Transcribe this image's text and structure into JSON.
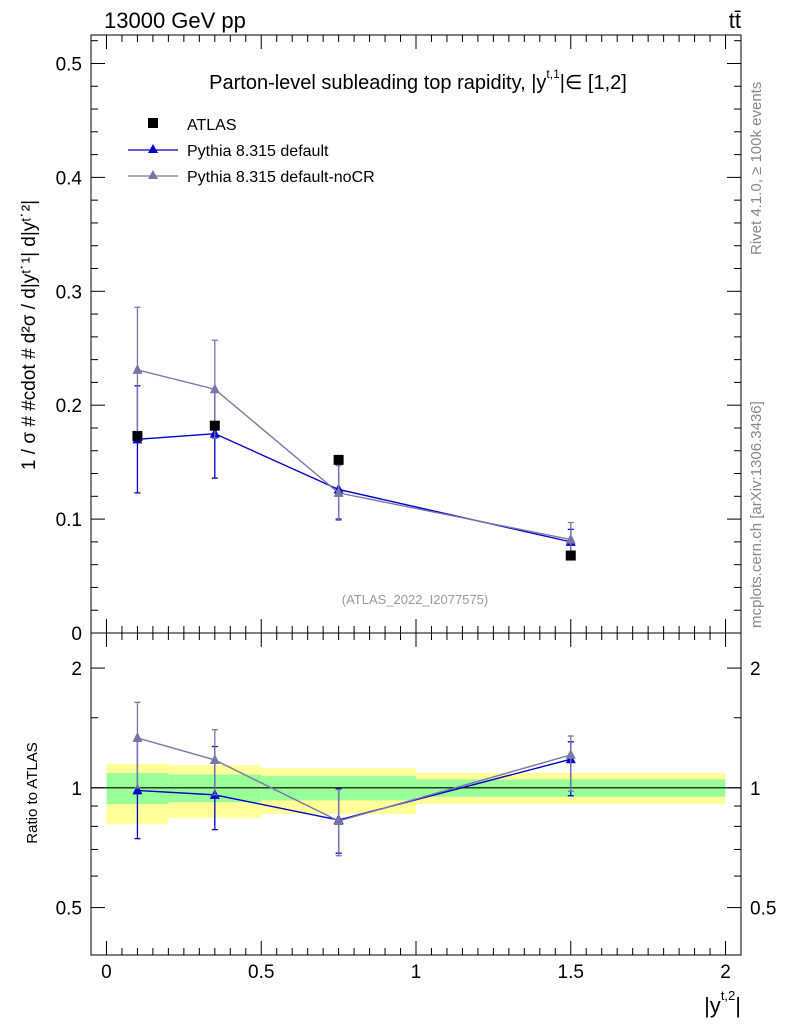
{
  "header": {
    "left": "13000 GeV pp",
    "right": "tt̄"
  },
  "side_labels": {
    "upper": "Rivet 4.1.0, ≥ 100k events",
    "lower": "mcplots.cern.ch [arXiv:1306.3436]"
  },
  "chart_data": [
    {
      "type": "scatter",
      "title": "Parton-level subleading top rapidity, |y",
      "title_sup": "t,1",
      "title_tail": "|∈ [1,2]",
      "ylabel": "1 / σ # #cdot # d²σ / d|yᵗ˙¹| d|yᵗ˙²|",
      "xlim": [
        -0.05,
        2.05
      ],
      "ylim": [
        0,
        0.525
      ],
      "yticks": [
        0.1,
        0.2,
        0.3,
        0.4,
        0.5
      ],
      "ytick_labels": [
        "0.1",
        "0.2",
        "0.3",
        "0.4",
        "0.5"
      ],
      "ytick_zero_label": "0",
      "watermark": "(ATLAS_2022_I2077575)",
      "legend": [
        "ATLAS",
        "Pythia 8.315 default",
        "Pythia 8.315 default-noCR"
      ],
      "data": {
        "name": "ATLAS",
        "color": "#000000",
        "x": [
          0.1,
          0.35,
          0.75,
          1.5
        ],
        "y": [
          0.173,
          0.182,
          0.152,
          0.068
        ]
      },
      "series": [
        {
          "name": "Pythia 8.315 default",
          "color": "#0000cc",
          "x": [
            0.1,
            0.35,
            0.75,
            1.5
          ],
          "y": [
            0.17,
            0.175,
            0.126,
            0.08
          ],
          "err": [
            0.047,
            0.039,
            0.026,
            0.011
          ]
        },
        {
          "name": "Pythia 8.315 default-noCR",
          "color": "#7777aa",
          "x": [
            0.1,
            0.35,
            0.75,
            1.5
          ],
          "y": [
            0.231,
            0.214,
            0.123,
            0.082
          ],
          "err": [
            0.055,
            0.043,
            0.024,
            0.015
          ]
        }
      ]
    },
    {
      "type": "line",
      "ylabel": "Ratio to ATLAS",
      "xlabel": "|y",
      "xlabel_sup": "t,2",
      "xlabel_tail": "|",
      "ylim": [
        0.38,
        2.45
      ],
      "xticks": [
        0,
        0.5,
        1,
        1.5,
        2
      ],
      "xtick_labels": [
        "0",
        "0.5",
        "1",
        "1.5",
        "2"
      ],
      "yticks": [
        0.5,
        1,
        2
      ],
      "ytick_labels": [
        "0.5",
        "1",
        "2"
      ],
      "bands": [
        {
          "x0": 0.0,
          "x1": 0.2,
          "inner": [
            0.91,
            1.09
          ],
          "outer": [
            0.81,
            1.15
          ]
        },
        {
          "x0": 0.2,
          "x1": 0.5,
          "inner": [
            0.92,
            1.08
          ],
          "outer": [
            0.84,
            1.14
          ]
        },
        {
          "x0": 0.5,
          "x1": 1.0,
          "inner": [
            0.93,
            1.07
          ],
          "outer": [
            0.86,
            1.12
          ]
        },
        {
          "x0": 1.0,
          "x1": 2.0,
          "inner": [
            0.95,
            1.05
          ],
          "outer": [
            0.91,
            1.09
          ]
        }
      ],
      "series": [
        {
          "name": "Pythia 8.315 default",
          "color": "#0000cc",
          "x": [
            0.1,
            0.35,
            0.75,
            1.5
          ],
          "y": [
            0.985,
            0.96,
            0.83,
            1.18
          ],
          "err_low": [
            0.745,
            0.785,
            0.685,
            0.955
          ],
          "err_high": [
            1.31,
            1.27,
            0.995,
            1.305
          ]
        },
        {
          "name": "Pythia 8.315 default-noCR",
          "color": "#7777aa",
          "x": [
            0.1,
            0.35,
            0.75,
            1.5
          ],
          "y": [
            1.335,
            1.175,
            0.825,
            1.21
          ],
          "err_low": [
            1.0,
            0.96,
            0.675,
            0.98
          ],
          "err_high": [
            1.64,
            1.4,
            0.99,
            1.35
          ]
        }
      ]
    }
  ]
}
